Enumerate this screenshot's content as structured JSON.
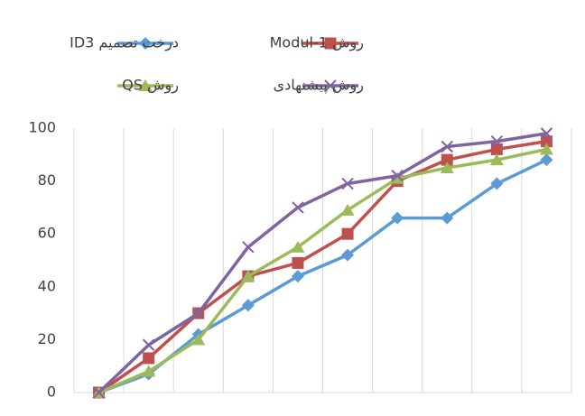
{
  "chart_data": {
    "type": "line",
    "categories": [
      null,
      null,
      null,
      null,
      null,
      null,
      null,
      null,
      null,
      null
    ],
    "series": [
      {
        "name": "درخت تصمیم ID3",
        "color": "#5b9bd5",
        "marker": "diamond",
        "values": [
          0,
          7,
          22,
          33,
          44,
          52,
          66,
          66,
          79,
          88
        ]
      },
      {
        "name": "روش Modul-1",
        "color": "#c0504d",
        "marker": "square",
        "values": [
          0,
          13,
          30,
          44,
          49,
          60,
          80,
          88,
          92,
          95
        ]
      },
      {
        "name": "روش QS",
        "color": "#9bbb59",
        "marker": "triangle",
        "values": [
          0,
          8,
          20,
          44,
          55,
          69,
          81,
          85,
          88,
          92
        ]
      },
      {
        "name": "روش پیشنهادی",
        "color": "#8064a2",
        "marker": "x",
        "values": [
          0,
          18,
          30,
          55,
          70,
          79,
          82,
          93,
          95,
          98
        ]
      }
    ],
    "ylim": [
      0,
      100
    ],
    "yticks": [
      0,
      20,
      40,
      60,
      80,
      100
    ],
    "grid": "vertical",
    "legend": "top"
  }
}
